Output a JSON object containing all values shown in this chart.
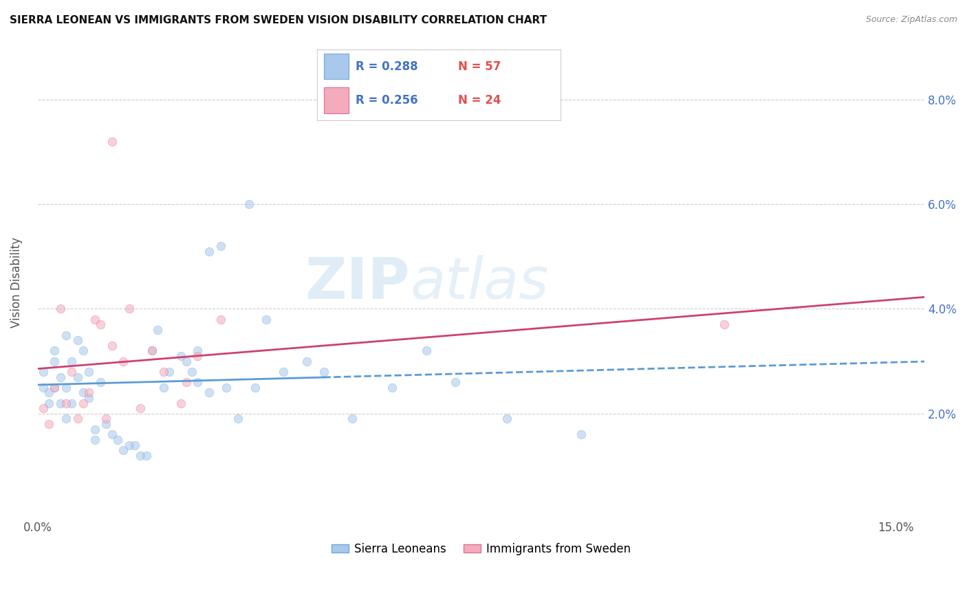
{
  "title": "SIERRA LEONEAN VS IMMIGRANTS FROM SWEDEN VISION DISABILITY CORRELATION CHART",
  "source": "Source: ZipAtlas.com",
  "ylabel": "Vision Disability",
  "xlim": [
    0.0,
    0.155
  ],
  "ylim": [
    0.0,
    0.09
  ],
  "xtick_positions": [
    0.0,
    0.025,
    0.05,
    0.075,
    0.1,
    0.125,
    0.15
  ],
  "xtick_labels": [
    "0.0%",
    "",
    "",
    "",
    "",
    "",
    "15.0%"
  ],
  "ytick_positions": [
    0.0,
    0.02,
    0.04,
    0.06,
    0.08
  ],
  "ytick_labels": [
    "",
    "2.0%",
    "4.0%",
    "6.0%",
    "8.0%"
  ],
  "sierra_color_face": "#A8C8EC",
  "sierra_color_edge": "#6BADD6",
  "sweden_color_face": "#F4ABBC",
  "sweden_color_edge": "#E07090",
  "trend_sierra_color": "#5B9BD5",
  "trend_sweden_color": "#D04070",
  "r_value_color": "#4472C4",
  "n_value_color": "#E05050",
  "legend_label1": "Sierra Leoneans",
  "legend_label2": "Immigrants from Sweden",
  "watermark": "ZIPatlas",
  "axis_tick_color": "#4472C4",
  "ylabel_color": "#555555",
  "title_color": "#111111",
  "source_color": "#888888",
  "grid_color": "#CCCCCC",
  "sierra_x": [
    0.001,
    0.001,
    0.002,
    0.002,
    0.003,
    0.003,
    0.003,
    0.004,
    0.004,
    0.005,
    0.005,
    0.005,
    0.006,
    0.006,
    0.007,
    0.007,
    0.008,
    0.008,
    0.009,
    0.009,
    0.01,
    0.01,
    0.011,
    0.012,
    0.013,
    0.014,
    0.015,
    0.016,
    0.017,
    0.018,
    0.019,
    0.02,
    0.021,
    0.022,
    0.023,
    0.025,
    0.026,
    0.027,
    0.028,
    0.028,
    0.03,
    0.032,
    0.033,
    0.035,
    0.037,
    0.04,
    0.043,
    0.047,
    0.05,
    0.055,
    0.062,
    0.068,
    0.073,
    0.082,
    0.095,
    0.038,
    0.03
  ],
  "sierra_y": [
    0.025,
    0.028,
    0.024,
    0.022,
    0.03,
    0.025,
    0.032,
    0.027,
    0.022,
    0.019,
    0.025,
    0.035,
    0.022,
    0.03,
    0.034,
    0.027,
    0.024,
    0.032,
    0.028,
    0.023,
    0.015,
    0.017,
    0.026,
    0.018,
    0.016,
    0.015,
    0.013,
    0.014,
    0.014,
    0.012,
    0.012,
    0.032,
    0.036,
    0.025,
    0.028,
    0.031,
    0.03,
    0.028,
    0.032,
    0.026,
    0.024,
    0.052,
    0.025,
    0.019,
    0.06,
    0.038,
    0.028,
    0.03,
    0.028,
    0.019,
    0.025,
    0.032,
    0.026,
    0.019,
    0.016,
    0.025,
    0.051
  ],
  "sweden_x": [
    0.001,
    0.002,
    0.003,
    0.004,
    0.005,
    0.006,
    0.007,
    0.008,
    0.009,
    0.01,
    0.011,
    0.012,
    0.013,
    0.015,
    0.016,
    0.018,
    0.02,
    0.022,
    0.025,
    0.026,
    0.028,
    0.032,
    0.12,
    0.013
  ],
  "sweden_y": [
    0.021,
    0.018,
    0.025,
    0.04,
    0.022,
    0.028,
    0.019,
    0.022,
    0.024,
    0.038,
    0.037,
    0.019,
    0.033,
    0.03,
    0.04,
    0.021,
    0.032,
    0.028,
    0.022,
    0.026,
    0.031,
    0.038,
    0.037,
    0.072
  ],
  "trend_x_start": 0.0,
  "trend_x_end": 0.155,
  "trend_solid_end": 0.05
}
